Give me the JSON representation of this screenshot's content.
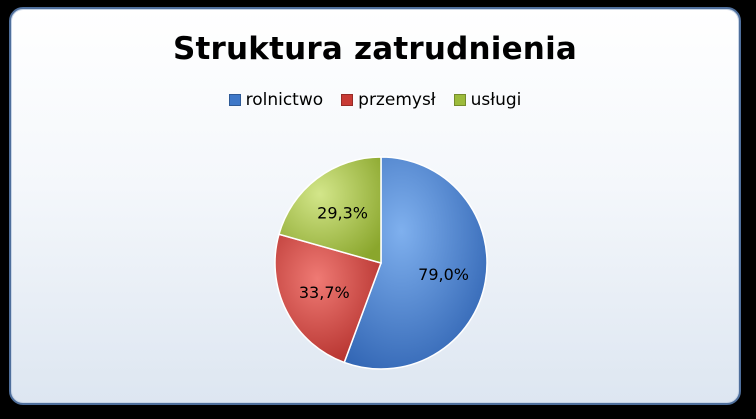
{
  "chart_data": {
    "type": "pie",
    "title": "Struktura zatrudnienia",
    "legend_position": "top",
    "slices": [
      {
        "name": "rolnictwo",
        "value": 79.0,
        "label": "79,0%",
        "color": "#3f78c8"
      },
      {
        "name": "przemysł",
        "value": 33.7,
        "label": "33,7%",
        "color": "#c83a35"
      },
      {
        "name": "usługi",
        "value": 29.3,
        "label": "29,3%",
        "color": "#9cbb3b"
      }
    ]
  }
}
